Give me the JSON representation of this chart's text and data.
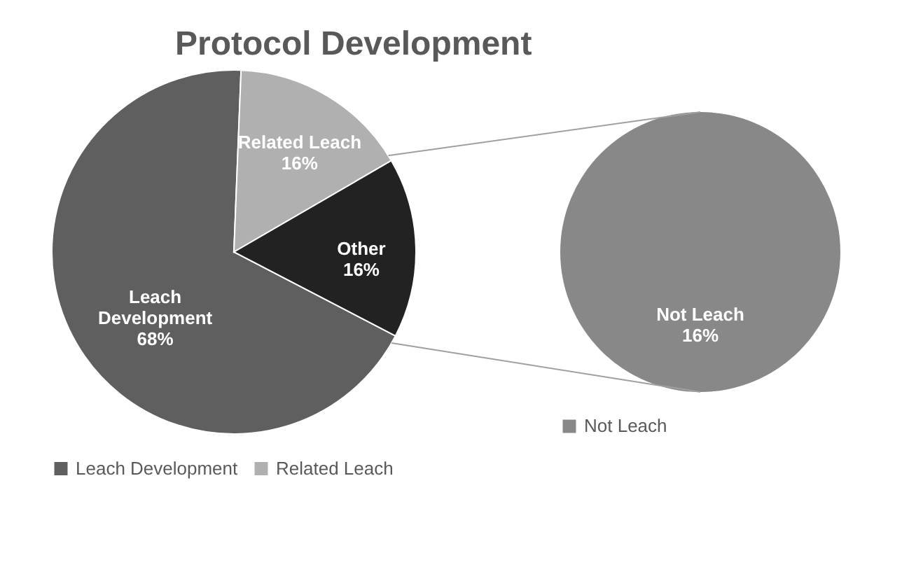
{
  "chart_data": [
    {
      "type": "pie",
      "title": "Protocol Development",
      "categories": [
        "Leach Development",
        "Related Leach",
        "Other"
      ],
      "values": [
        68,
        16,
        16
      ],
      "colors": [
        "#5f5f5f",
        "#b0b0b0",
        "#222222"
      ],
      "value_labels": [
        "68%",
        "16%",
        "16%"
      ],
      "legend": "bottom"
    },
    {
      "type": "pie",
      "categories": [
        "Not Leach"
      ],
      "values": [
        16
      ],
      "colors": [
        "#888888"
      ],
      "value_labels": [
        "16%"
      ],
      "legend": "bottom"
    }
  ]
}
